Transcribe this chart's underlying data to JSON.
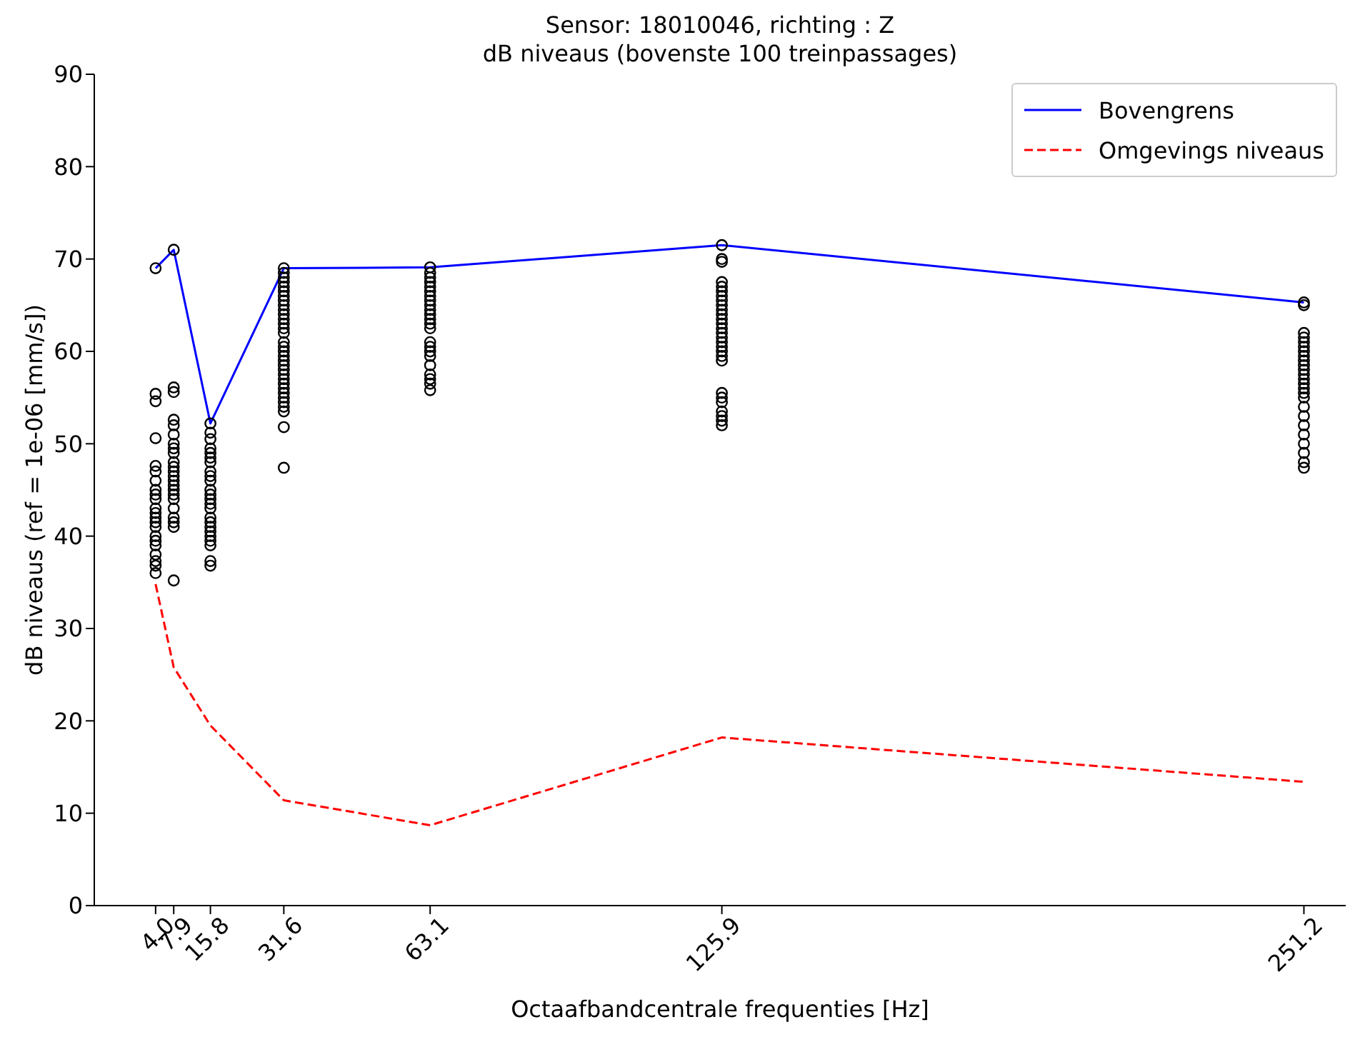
{
  "chart_data": {
    "type": "line",
    "title": "Sensor: 18010046, richting : Z",
    "subtitle": "dB niveaus (bovenste 100 treinpassages)",
    "xlabel": "Octaafbandcentrale frequenties  [Hz]",
    "ylabel": "dB niveaus (ref = 1e-06 [mm/s])",
    "xlim": [
      -9.2,
      260.2
    ],
    "xticks": [
      {
        "value": 4,
        "label": "4.0"
      },
      7.9,
      15.8,
      31.6,
      63.1,
      125.9,
      251.2
    ],
    "ylim": [
      0,
      90
    ],
    "yticks": [
      0,
      10,
      20,
      30,
      40,
      50,
      60,
      70,
      80,
      90
    ],
    "grid": false,
    "legend": "top right",
    "series": [
      {
        "name": "Bovengrens",
        "color": "#0000ff",
        "line_style": "solid",
        "marker": "none",
        "x": [
          4,
          7.9,
          15.8,
          31.6,
          63.1,
          125.9,
          251.2
        ],
        "values": [
          69,
          71,
          52.2,
          69,
          69.1,
          71.5,
          65.3
        ]
      },
      {
        "name": "Omgevings niveaus",
        "color": "#ff0000",
        "line_style": "dashed",
        "marker": "none",
        "x": [
          4,
          7.9,
          15.8,
          31.6,
          63.1,
          125.9,
          251.2
        ],
        "values": [
          34.8,
          25.8,
          19.5,
          11.4,
          8.7,
          18.2,
          13.4
        ]
      },
      {
        "type": "scatter",
        "color": "#000000",
        "marker": "circle",
        "x": [
          4,
          4,
          4,
          4,
          4,
          4,
          4,
          4,
          4,
          4,
          4,
          4,
          4,
          4,
          4,
          4,
          4,
          4,
          4,
          4,
          4,
          4
        ],
        "values": [
          69,
          55.4,
          54.6,
          50.6,
          47.6,
          47,
          46,
          45,
          44.5,
          44,
          43,
          42.5,
          42,
          41.5,
          41,
          40,
          39.5,
          39,
          38,
          37.3,
          36.8,
          36
        ]
      },
      {
        "type": "scatter",
        "color": "#000000",
        "marker": "circle",
        "x": [
          7.9,
          7.9,
          7.9,
          7.9,
          7.9,
          7.9,
          7.9,
          7.9,
          7.9,
          7.9,
          7.9,
          7.9,
          7.9,
          7.9,
          7.9,
          7.9,
          7.9,
          7.9,
          7.9,
          7.9,
          7.9,
          7.9,
          7.9
        ],
        "values": [
          71,
          56.1,
          55.6,
          52.6,
          52,
          51,
          50,
          49.5,
          49,
          48,
          47.5,
          47,
          46.5,
          46,
          45.5,
          45,
          44.5,
          44,
          43,
          42,
          41.5,
          41,
          35.2
        ]
      },
      {
        "type": "scatter",
        "color": "#000000",
        "marker": "circle",
        "x": [
          15.8,
          15.8,
          15.8,
          15.8,
          15.8,
          15.8,
          15.8,
          15.8,
          15.8,
          15.8,
          15.8,
          15.8,
          15.8,
          15.8,
          15.8,
          15.8,
          15.8,
          15.8,
          15.8,
          15.8,
          15.8,
          15.8,
          15.8,
          15.8
        ],
        "values": [
          52.2,
          51.2,
          50.5,
          49.5,
          49,
          48.5,
          48,
          47,
          46.5,
          46,
          45,
          44.5,
          44,
          43.5,
          43,
          42,
          41.5,
          41,
          40.5,
          40,
          39.5,
          39,
          37.3,
          36.8
        ]
      },
      {
        "type": "scatter",
        "color": "#000000",
        "marker": "circle",
        "x": [
          31.6,
          31.6,
          31.6,
          31.6,
          31.6,
          31.6,
          31.6,
          31.6,
          31.6,
          31.6,
          31.6,
          31.6,
          31.6,
          31.6,
          31.6,
          31.6,
          31.6,
          31.6,
          31.6,
          31.6,
          31.6,
          31.6,
          31.6,
          31.6,
          31.6,
          31.6,
          31.6,
          31.6,
          31.6,
          31.6,
          31.6,
          31.6,
          31.6
        ],
        "values": [
          69,
          68.5,
          68,
          67.5,
          67,
          66.5,
          66,
          65.5,
          65,
          64.5,
          64,
          63.5,
          63,
          62.5,
          62,
          61,
          60.5,
          60,
          59.5,
          59,
          58.5,
          58,
          57.5,
          57,
          56.5,
          56,
          55.5,
          55,
          54.5,
          54,
          53.5,
          51.8,
          47.4
        ]
      },
      {
        "type": "scatter",
        "color": "#000000",
        "marker": "circle",
        "x": [
          63.1,
          63.1,
          63.1,
          63.1,
          63.1,
          63.1,
          63.1,
          63.1,
          63.1,
          63.1,
          63.1,
          63.1,
          63.1,
          63.1,
          63.1,
          63.1,
          63.1,
          63.1,
          63.1,
          63.1,
          63.1,
          63.1,
          63.1
        ],
        "values": [
          69.1,
          68.5,
          68,
          67.5,
          67,
          66.5,
          66,
          65.5,
          65,
          64.5,
          64,
          63.5,
          63,
          62.5,
          61,
          60.5,
          60,
          59.5,
          58.5,
          57.5,
          57,
          56.5,
          55.8
        ]
      },
      {
        "type": "scatter",
        "color": "#000000",
        "marker": "circle",
        "x": [
          125.9,
          125.9,
          125.9,
          125.9,
          125.9,
          125.9,
          125.9,
          125.9,
          125.9,
          125.9,
          125.9,
          125.9,
          125.9,
          125.9,
          125.9,
          125.9,
          125.9,
          125.9,
          125.9,
          125.9,
          125.9,
          125.9,
          125.9,
          125.9,
          125.9,
          125.9,
          125.9,
          125.9
        ],
        "values": [
          71.5,
          70,
          69.7,
          67.5,
          67,
          66.5,
          66,
          65.5,
          65,
          64.5,
          64,
          63.5,
          63,
          62.5,
          62,
          61.5,
          61,
          60.5,
          60,
          59.5,
          59,
          55.5,
          55,
          54.5,
          53.5,
          53,
          52.5,
          52
        ]
      },
      {
        "type": "scatter",
        "color": "#000000",
        "marker": "circle",
        "x": [
          251.2,
          251.2,
          251.2,
          251.2,
          251.2,
          251.2,
          251.2,
          251.2,
          251.2,
          251.2,
          251.2,
          251.2,
          251.2,
          251.2,
          251.2,
          251.2,
          251.2,
          251.2,
          251.2,
          251.2,
          251.2,
          251.2,
          251.2,
          251.2,
          251.2
        ],
        "values": [
          65.3,
          65,
          62,
          61.5,
          61,
          60.5,
          60,
          59.5,
          59,
          58.5,
          58,
          57.5,
          57,
          56.5,
          56,
          55.5,
          55,
          54,
          53,
          52,
          51,
          50,
          49,
          48,
          47.4
        ]
      }
    ]
  }
}
